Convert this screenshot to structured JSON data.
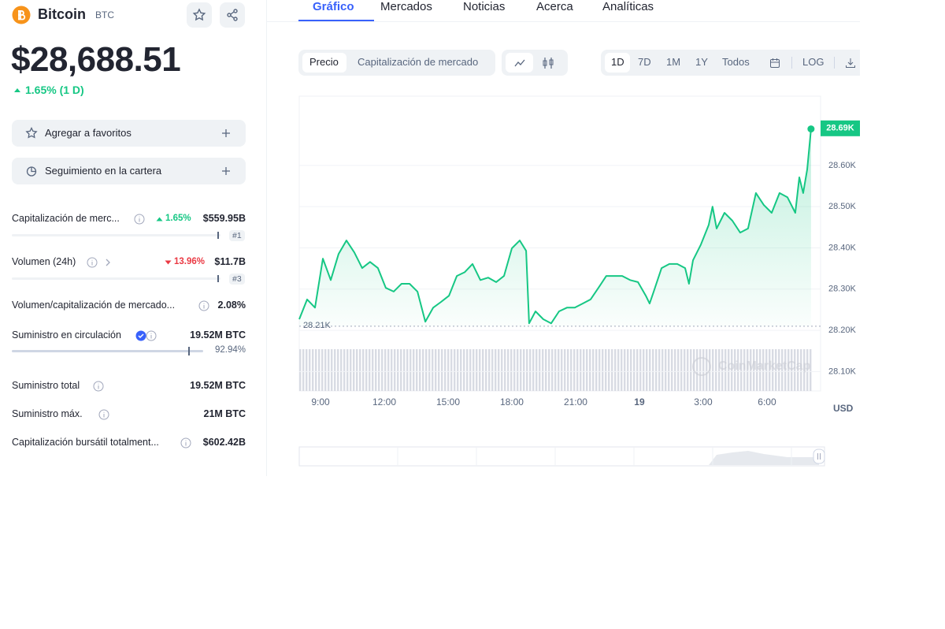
{
  "header": {
    "name": "Bitcoin",
    "symbol": "BTC"
  },
  "price": {
    "value": "$28,688.51",
    "change": "1.65% (1 D)"
  },
  "buttons": [
    "Agregar a favoritos",
    "Seguimiento en la cartera"
  ],
  "stats": [
    {
      "label": "Capitalización de merc...",
      "change": "1.65%",
      "value": "$559.95B",
      "rank": "#1"
    },
    {
      "label": "Volumen (24h)",
      "change": "13.96%",
      "value": "$11.7B",
      "rank": "#3"
    },
    {
      "label": "Volumen/capitalización de mercado...",
      "value": "2.08%"
    },
    {
      "label": "Suministro en circulación",
      "value": "19.52M BTC",
      "percent": "92.94%"
    },
    {
      "label": "Suministro total",
      "value": "19.52M BTC"
    },
    {
      "label": "Suministro máx.",
      "value": "21M BTC"
    },
    {
      "label": "Capitalización bursátil totalment...",
      "value": "$602.42B"
    }
  ],
  "tabs": [
    "Gráfico",
    "Mercados",
    "Noticias",
    "Acerca",
    "Analíticas"
  ],
  "toolbar": {
    "modes": [
      "Precio",
      "Capitalización de mercado"
    ],
    "ranges": [
      "1D",
      "7D",
      "1M",
      "1Y",
      "Todos"
    ],
    "log": "LOG"
  },
  "chart_data": {
    "type": "line",
    "color": "#16c784",
    "x": [
      8.0,
      8.37,
      8.74,
      9.11,
      9.48,
      9.85,
      10.22,
      10.59,
      10.96,
      11.33,
      11.7,
      12.07,
      12.44,
      12.81,
      13.19,
      13.56,
      13.93,
      14.3,
      14.67,
      15.04,
      15.41,
      15.78,
      16.15,
      16.52,
      16.89,
      17.26,
      17.63,
      18.0,
      18.37,
      18.67,
      18.81,
      19.11,
      19.48,
      19.85,
      20.22,
      20.59,
      20.96,
      21.33,
      21.7,
      22.07,
      22.44,
      22.81,
      23.19,
      23.56,
      23.93,
      24.3,
      24.48,
      24.67,
      25.04,
      25.41,
      25.78,
      26.15,
      26.33,
      26.52,
      26.89,
      27.26,
      27.44,
      27.63,
      28.0,
      28.37,
      28.74,
      29.11,
      29.48,
      29.85,
      30.22,
      30.59,
      30.96,
      31.33,
      31.52,
      31.7,
      31.89,
      32.07
    ],
    "values": [
      28227,
      28275,
      28255,
      28374,
      28322,
      28385,
      28418,
      28389,
      28351,
      28366,
      28351,
      28303,
      28294,
      28313,
      28313,
      28294,
      28221,
      28255,
      28269,
      28284,
      28332,
      28341,
      28361,
      28322,
      28328,
      28317,
      28332,
      28399,
      28418,
      28393,
      28217,
      28246,
      28227,
      28217,
      28246,
      28255,
      28255,
      28265,
      28275,
      28303,
      28332,
      28332,
      28332,
      28322,
      28317,
      28284,
      28265,
      28294,
      28351,
      28361,
      28361,
      28351,
      28313,
      28370,
      28408,
      28456,
      28500,
      28447,
      28485,
      28466,
      28437,
      28447,
      28533,
      28504,
      28485,
      28533,
      28523,
      28485,
      28571,
      28533,
      28590,
      28688.51
    ],
    "xlim": [
      8,
      32.52
    ],
    "ylim": [
      28053,
      28768
    ],
    "xticks": [
      {
        "value": 9,
        "label": "9:00"
      },
      {
        "value": 12,
        "label": "12:00"
      },
      {
        "value": 15,
        "label": "15:00"
      },
      {
        "value": 18,
        "label": "18:00"
      },
      {
        "value": 21,
        "label": "21:00"
      },
      {
        "value": 24,
        "label": "19"
      },
      {
        "value": 27,
        "label": "3:00"
      },
      {
        "value": 30,
        "label": "6:00"
      }
    ],
    "yticks": [
      {
        "value": 28100,
        "label": "28.10K"
      },
      {
        "value": 28200,
        "label": "28.20K"
      },
      {
        "value": 28300,
        "label": "28.30K"
      },
      {
        "value": 28400,
        "label": "28.40K"
      },
      {
        "value": 28500,
        "label": "28.50K"
      },
      {
        "value": 28600,
        "label": "28.60K"
      }
    ],
    "grid": true,
    "current": {
      "value": 28690,
      "label": "28.69K"
    },
    "open": {
      "value": 28210,
      "label": "28.21K"
    },
    "unit": "USD",
    "watermark": "CoinMarketCap"
  }
}
